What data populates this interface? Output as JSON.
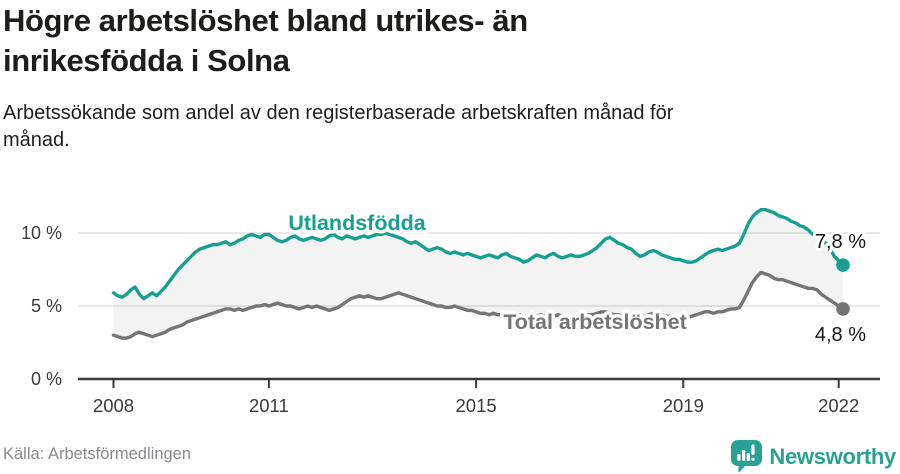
{
  "header": {
    "title": "Högre arbetslöshet bland utrikes- än inrikesfödda i Solna",
    "subtitle": "Arbetssökande som andel av den registerbaserade arbetskraften månad för månad."
  },
  "footer": {
    "source": "Källa: Arbetsförmedlingen",
    "brand": "Newsworthy"
  },
  "colors": {
    "accent_teal": "#17a092",
    "series_gray": "#757577",
    "logo_teal": "#2aa195",
    "title_text": "#1d1d1b",
    "axis_text": "#3b3b3b",
    "grid": "#d9d9d9",
    "axis_line": "#3a3a3a",
    "band_fill": "rgba(120,120,120,0.09)",
    "value_label_text": "#141414",
    "source_text": "#898991"
  },
  "chart_data": {
    "type": "line",
    "unit": "%",
    "x_start": "2008-01",
    "x_end": "2022-02",
    "x_tick_years": [
      2008,
      2011,
      2015,
      2019,
      2022
    ],
    "x_tick_labels": [
      "2008",
      "2011",
      "2015",
      "2019",
      "2022"
    ],
    "y_ticks": [
      0,
      5,
      10
    ],
    "y_tick_labels": [
      "0 %",
      "5 %",
      "10 %"
    ],
    "ylim": [
      0,
      12.5
    ],
    "grid": "horizontal",
    "legend_position": "inline-labels",
    "band_fill_between_series": true,
    "series": [
      {
        "name": "Utlandsfödda",
        "color": "#17a092",
        "end_label": "7,8 %",
        "end_value": 7.8,
        "values": [
          5.9,
          5.7,
          5.6,
          5.8,
          6.1,
          6.3,
          5.8,
          5.5,
          5.7,
          5.9,
          5.7,
          6.0,
          6.3,
          6.7,
          7.1,
          7.5,
          7.8,
          8.1,
          8.4,
          8.7,
          8.9,
          9.0,
          9.1,
          9.2,
          9.2,
          9.3,
          9.4,
          9.2,
          9.3,
          9.5,
          9.6,
          9.8,
          9.9,
          9.8,
          9.7,
          9.9,
          9.9,
          9.7,
          9.5,
          9.4,
          9.5,
          9.7,
          9.8,
          9.6,
          9.5,
          9.6,
          9.7,
          9.6,
          9.5,
          9.6,
          9.8,
          9.9,
          9.7,
          9.6,
          9.8,
          9.7,
          9.6,
          9.7,
          9.8,
          9.7,
          9.8,
          9.9,
          9.9,
          10.0,
          9.9,
          9.8,
          9.7,
          9.6,
          9.4,
          9.3,
          9.4,
          9.2,
          9.0,
          8.8,
          8.9,
          9.0,
          8.9,
          8.7,
          8.6,
          8.7,
          8.6,
          8.5,
          8.6,
          8.5,
          8.4,
          8.3,
          8.4,
          8.5,
          8.4,
          8.3,
          8.5,
          8.6,
          8.4,
          8.3,
          8.2,
          8.0,
          8.1,
          8.3,
          8.5,
          8.4,
          8.3,
          8.5,
          8.6,
          8.4,
          8.3,
          8.4,
          8.5,
          8.4,
          8.4,
          8.5,
          8.6,
          8.8,
          9.0,
          9.3,
          9.6,
          9.7,
          9.5,
          9.3,
          9.2,
          9.0,
          8.9,
          8.6,
          8.4,
          8.5,
          8.7,
          8.8,
          8.7,
          8.5,
          8.4,
          8.3,
          8.2,
          8.2,
          8.1,
          8.0,
          8.0,
          8.1,
          8.3,
          8.5,
          8.7,
          8.8,
          8.9,
          8.8,
          8.9,
          9.0,
          9.1,
          9.3,
          9.9,
          10.6,
          11.1,
          11.4,
          11.6,
          11.6,
          11.5,
          11.4,
          11.2,
          11.1,
          11.0,
          10.8,
          10.7,
          10.5,
          10.4,
          10.2,
          9.9,
          9.8,
          9.6,
          9.3,
          8.9,
          8.4,
          8.1,
          7.8
        ]
      },
      {
        "name": "Total arbetslöshet",
        "color": "#757577",
        "end_label": "4,8 %",
        "end_value": 4.8,
        "values": [
          3.0,
          2.9,
          2.8,
          2.8,
          2.9,
          3.1,
          3.2,
          3.1,
          3.0,
          2.9,
          3.0,
          3.1,
          3.2,
          3.4,
          3.5,
          3.6,
          3.7,
          3.9,
          4.0,
          4.1,
          4.2,
          4.3,
          4.4,
          4.5,
          4.6,
          4.7,
          4.8,
          4.8,
          4.7,
          4.8,
          4.7,
          4.8,
          4.9,
          5.0,
          5.0,
          5.1,
          5.0,
          5.1,
          5.2,
          5.1,
          5.0,
          5.0,
          4.9,
          4.8,
          4.9,
          5.0,
          4.9,
          5.0,
          4.9,
          4.8,
          4.7,
          4.8,
          4.9,
          5.1,
          5.3,
          5.5,
          5.6,
          5.7,
          5.6,
          5.7,
          5.6,
          5.5,
          5.5,
          5.6,
          5.7,
          5.8,
          5.9,
          5.8,
          5.7,
          5.6,
          5.5,
          5.4,
          5.3,
          5.2,
          5.1,
          5.0,
          5.0,
          4.9,
          4.9,
          5.0,
          4.9,
          4.8,
          4.7,
          4.7,
          4.6,
          4.5,
          4.5,
          4.4,
          4.5,
          4.4,
          4.4,
          4.5,
          4.4,
          4.3,
          4.4,
          4.3,
          4.3,
          4.2,
          4.3,
          4.4,
          4.3,
          4.2,
          4.3,
          4.4,
          4.3,
          4.2,
          4.3,
          4.3,
          4.2,
          4.3,
          4.4,
          4.4,
          4.5,
          4.6,
          4.6,
          4.5,
          4.4,
          4.4,
          4.3,
          4.4,
          4.3,
          4.3,
          4.2,
          4.3,
          4.4,
          4.5,
          4.4,
          4.4,
          4.3,
          4.3,
          4.2,
          4.3,
          4.3,
          4.2,
          4.3,
          4.4,
          4.5,
          4.6,
          4.6,
          4.5,
          4.6,
          4.6,
          4.7,
          4.8,
          4.8,
          4.9,
          5.4,
          6.0,
          6.6,
          7.0,
          7.3,
          7.2,
          7.1,
          6.9,
          6.8,
          6.8,
          6.7,
          6.6,
          6.5,
          6.4,
          6.3,
          6.2,
          6.2,
          6.1,
          5.8,
          5.6,
          5.4,
          5.2,
          5.0,
          4.8
        ]
      }
    ]
  }
}
